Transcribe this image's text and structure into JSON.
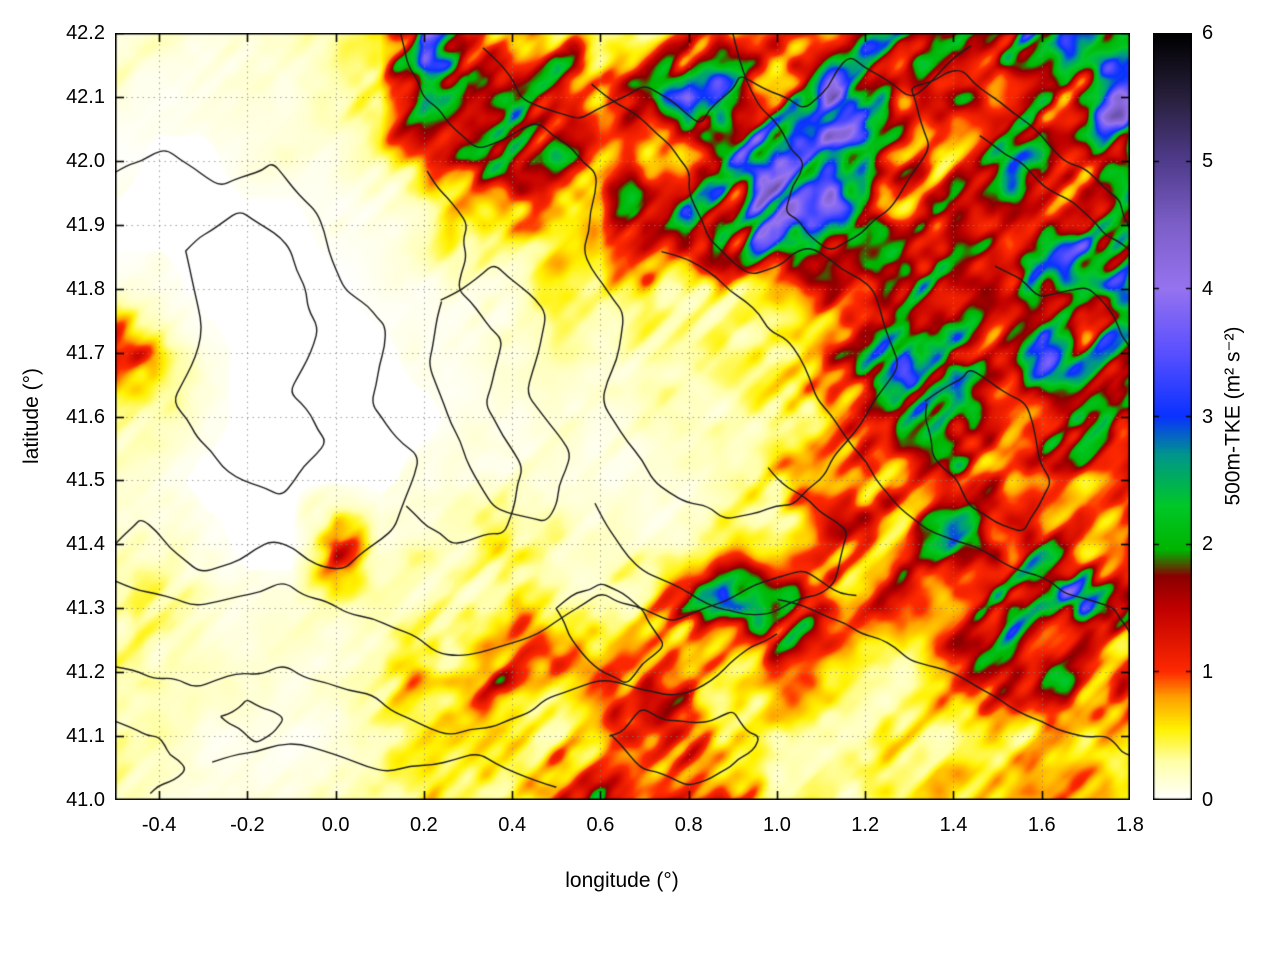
{
  "chart_data": {
    "type": "heatmap",
    "title": "",
    "xlabel": "longitude (°)",
    "ylabel": "latitude (°)",
    "xlim": [
      -0.5,
      1.8
    ],
    "ylim": [
      41.0,
      42.2
    ],
    "grid_on": true,
    "legend": "none",
    "xticks": [
      -0.4,
      -0.2,
      0.0,
      0.2,
      0.4,
      0.6,
      0.8,
      1.0,
      1.2,
      1.4,
      1.6,
      1.8
    ],
    "xtick_labels": [
      "-0.4",
      "-0.2",
      "0.0",
      "0.2",
      "0.4",
      "0.6",
      "0.8",
      "1.0",
      "1.2",
      "1.4",
      "1.6",
      "1.8"
    ],
    "yticks": [
      41.0,
      41.1,
      41.2,
      41.3,
      41.4,
      41.5,
      41.6,
      41.7,
      41.8,
      41.9,
      42.0,
      42.1,
      42.2
    ],
    "ytick_labels": [
      "41.0",
      "41.1",
      "41.2",
      "41.3",
      "41.4",
      "41.5",
      "41.6",
      "41.7",
      "41.8",
      "41.9",
      "42.0",
      "42.1",
      "42.2"
    ],
    "colorbar": {
      "label": "500m-TKE (m² s⁻²)",
      "min": 0,
      "max": 6,
      "ticks": [
        0,
        1,
        2,
        3,
        4,
        5,
        6
      ],
      "tick_labels": [
        "0",
        "1",
        "2",
        "3",
        "4",
        "5",
        "6"
      ],
      "palette": [
        {
          "v": 0.0,
          "c": "#ffffff"
        },
        {
          "v": 0.3,
          "c": "#ffffa8"
        },
        {
          "v": 0.55,
          "c": "#fff200"
        },
        {
          "v": 0.8,
          "c": "#ffa000"
        },
        {
          "v": 1.0,
          "c": "#ff2a00"
        },
        {
          "v": 1.5,
          "c": "#c00000"
        },
        {
          "v": 1.75,
          "c": "#8a0000"
        },
        {
          "v": 1.95,
          "c": "#00b400"
        },
        {
          "v": 2.3,
          "c": "#00c828"
        },
        {
          "v": 2.7,
          "c": "#00968c"
        },
        {
          "v": 3.0,
          "c": "#0a32ff"
        },
        {
          "v": 3.5,
          "c": "#5a50ff"
        },
        {
          "v": 4.0,
          "c": "#9673f0"
        },
        {
          "v": 4.5,
          "c": "#7d5fc8"
        },
        {
          "v": 5.0,
          "c": "#503c8c"
        },
        {
          "v": 5.5,
          "c": "#28203c"
        },
        {
          "v": 6.0,
          "c": "#000000"
        }
      ]
    },
    "grid": {
      "lons": [
        -0.5,
        -0.4,
        -0.3,
        -0.2,
        -0.1,
        0.0,
        0.1,
        0.2,
        0.3,
        0.4,
        0.5,
        0.6,
        0.7,
        0.8,
        0.9,
        1.0,
        1.1,
        1.2,
        1.3,
        1.4,
        1.5,
        1.6,
        1.7,
        1.8
      ],
      "lats_north_to_south": [
        42.2,
        42.1,
        42.0,
        41.9,
        41.8,
        41.7,
        41.6,
        41.5,
        41.4,
        41.3,
        41.2,
        41.1,
        41.0
      ],
      "values_rows_north_to_south": [
        [
          0.3,
          0.2,
          0.1,
          0.1,
          0.2,
          0.3,
          0.6,
          2.8,
          1.2,
          0.5,
          1.4,
          0.6,
          0.5,
          1.5,
          0.8,
          1.8,
          1.2,
          1.5,
          2.2,
          1.2,
          2.6,
          3.2,
          2.4,
          1.8
        ],
        [
          0.1,
          0.1,
          0.1,
          0.1,
          0.1,
          0.2,
          0.4,
          1.8,
          0.8,
          1.6,
          1.2,
          0.6,
          1.8,
          2.6,
          2.2,
          1.6,
          2.4,
          3.2,
          2.0,
          1.4,
          2.2,
          2.8,
          2.0,
          2.6
        ],
        [
          0.1,
          0.0,
          0.0,
          0.1,
          0.1,
          0.1,
          0.3,
          0.8,
          1.6,
          2.0,
          1.4,
          0.8,
          1.0,
          1.4,
          2.2,
          3.4,
          3.0,
          2.6,
          1.6,
          1.2,
          1.8,
          2.4,
          1.6,
          2.2
        ],
        [
          0.0,
          0.0,
          0.0,
          0.0,
          0.0,
          0.1,
          0.1,
          0.2,
          0.5,
          1.0,
          0.6,
          0.4,
          2.4,
          2.8,
          1.8,
          2.6,
          3.0,
          2.2,
          1.2,
          1.6,
          1.0,
          2.0,
          2.6,
          2.0
        ],
        [
          0.1,
          0.1,
          0.0,
          0.0,
          0.0,
          0.0,
          0.1,
          0.1,
          0.2,
          0.3,
          0.3,
          0.4,
          0.8,
          0.6,
          0.5,
          0.8,
          1.0,
          1.4,
          1.6,
          1.2,
          1.8,
          2.6,
          2.2,
          2.8
        ],
        [
          1.0,
          0.4,
          0.1,
          0.0,
          0.0,
          0.0,
          0.0,
          0.1,
          0.1,
          0.1,
          0.2,
          0.2,
          0.3,
          0.3,
          0.4,
          0.6,
          0.8,
          1.4,
          1.8,
          1.4,
          1.6,
          2.4,
          1.8,
          2.2
        ],
        [
          0.5,
          0.2,
          0.1,
          0.0,
          0.0,
          0.0,
          0.0,
          0.0,
          0.1,
          0.1,
          0.1,
          0.1,
          0.2,
          0.2,
          0.3,
          0.5,
          0.8,
          1.2,
          2.0,
          2.4,
          1.6,
          1.4,
          2.0,
          1.8
        ],
        [
          0.2,
          0.1,
          0.0,
          0.0,
          0.0,
          0.0,
          0.0,
          0.1,
          0.1,
          0.2,
          0.1,
          0.1,
          0.1,
          0.2,
          0.3,
          0.4,
          1.0,
          1.6,
          1.2,
          1.4,
          1.6,
          1.0,
          0.8,
          1.2
        ],
        [
          0.3,
          0.2,
          0.1,
          0.0,
          0.0,
          1.0,
          0.2,
          0.3,
          0.4,
          0.5,
          0.3,
          0.2,
          0.2,
          0.3,
          0.4,
          0.5,
          0.6,
          0.8,
          1.4,
          2.2,
          2.6,
          1.8,
          1.0,
          1.4
        ],
        [
          0.6,
          0.3,
          0.2,
          0.1,
          0.1,
          0.2,
          0.2,
          0.3,
          0.6,
          0.8,
          0.6,
          0.5,
          0.8,
          1.4,
          1.8,
          1.6,
          1.8,
          1.4,
          1.0,
          1.4,
          1.8,
          2.0,
          2.4,
          1.8
        ],
        [
          0.5,
          0.3,
          0.2,
          0.1,
          0.1,
          0.2,
          0.3,
          0.8,
          1.6,
          1.4,
          1.2,
          0.8,
          0.8,
          1.0,
          0.8,
          0.8,
          0.6,
          0.5,
          0.4,
          1.0,
          1.6,
          1.4,
          1.6,
          1.8
        ],
        [
          0.3,
          0.2,
          0.1,
          0.1,
          0.1,
          0.1,
          0.2,
          0.3,
          0.4,
          0.5,
          0.4,
          0.6,
          1.2,
          1.6,
          1.2,
          0.5,
          0.4,
          0.3,
          0.5,
          0.4,
          0.5,
          0.6,
          0.5,
          0.6
        ],
        [
          0.2,
          0.1,
          0.1,
          0.1,
          0.1,
          0.2,
          0.3,
          0.4,
          0.5,
          0.6,
          1.2,
          2.0,
          1.4,
          1.8,
          1.0,
          0.6,
          0.5,
          0.5,
          0.5,
          0.6,
          0.6,
          0.7,
          0.6,
          0.5
        ]
      ]
    },
    "contours": {
      "color": "#1c1c1c",
      "paths": [
        [
          [
            -0.5,
            41.98
          ],
          [
            -0.38,
            42.02
          ],
          [
            -0.26,
            41.96
          ],
          [
            -0.14,
            42.0
          ],
          [
            -0.04,
            41.92
          ],
          [
            0.02,
            41.8
          ],
          [
            0.12,
            41.74
          ],
          [
            0.08,
            41.62
          ],
          [
            0.18,
            41.54
          ],
          [
            0.14,
            41.42
          ],
          [
            0.02,
            41.36
          ],
          [
            -0.14,
            41.4
          ],
          [
            -0.3,
            41.36
          ],
          [
            -0.44,
            41.44
          ],
          [
            -0.5,
            41.4
          ]
        ],
        [
          [
            -0.34,
            41.86
          ],
          [
            -0.22,
            41.92
          ],
          [
            -0.1,
            41.86
          ],
          [
            -0.04,
            41.74
          ],
          [
            -0.1,
            41.64
          ],
          [
            -0.02,
            41.56
          ],
          [
            -0.12,
            41.48
          ],
          [
            -0.26,
            41.52
          ],
          [
            -0.36,
            41.62
          ],
          [
            -0.3,
            41.74
          ],
          [
            -0.34,
            41.86
          ]
        ],
        [
          [
            0.24,
            41.78
          ],
          [
            0.36,
            41.84
          ],
          [
            0.48,
            41.76
          ],
          [
            0.44,
            41.64
          ],
          [
            0.54,
            41.54
          ],
          [
            0.48,
            41.44
          ],
          [
            0.36,
            41.46
          ],
          [
            0.28,
            41.56
          ],
          [
            0.22,
            41.68
          ],
          [
            0.24,
            41.78
          ]
        ],
        [
          [
            0.14,
            42.2
          ],
          [
            0.2,
            42.1
          ],
          [
            0.32,
            42.02
          ],
          [
            0.46,
            42.06
          ],
          [
            0.6,
            41.98
          ],
          [
            0.56,
            41.86
          ],
          [
            0.66,
            41.76
          ],
          [
            0.6,
            41.62
          ],
          [
            0.72,
            41.5
          ],
          [
            0.88,
            41.44
          ],
          [
            1.04,
            41.46
          ],
          [
            1.16,
            41.56
          ],
          [
            1.28,
            41.68
          ],
          [
            1.22,
            41.8
          ],
          [
            1.08,
            41.86
          ],
          [
            0.94,
            41.82
          ],
          [
            0.84,
            41.88
          ],
          [
            0.8,
            41.98
          ],
          [
            0.7,
            42.06
          ],
          [
            0.58,
            42.12
          ]
        ],
        [
          [
            0.34,
            42.18
          ],
          [
            0.42,
            42.1
          ],
          [
            0.56,
            42.06
          ],
          [
            0.7,
            42.12
          ],
          [
            0.82,
            42.06
          ],
          [
            0.92,
            42.14
          ],
          [
            1.06,
            42.08
          ],
          [
            1.16,
            42.16
          ],
          [
            1.3,
            42.1
          ],
          [
            1.44,
            42.18
          ]
        ],
        [
          [
            0.9,
            42.2
          ],
          [
            0.96,
            42.08
          ],
          [
            1.06,
            42.0
          ],
          [
            1.02,
            41.92
          ],
          [
            1.12,
            41.86
          ],
          [
            1.26,
            41.92
          ],
          [
            1.34,
            42.02
          ],
          [
            1.3,
            42.12
          ],
          [
            1.42,
            42.14
          ],
          [
            1.54,
            42.08
          ],
          [
            1.66,
            42.0
          ],
          [
            1.78,
            41.94
          ],
          [
            1.8,
            41.88
          ]
        ],
        [
          [
            0.74,
            41.86
          ],
          [
            0.9,
            41.8
          ],
          [
            1.02,
            41.72
          ],
          [
            1.12,
            41.6
          ],
          [
            1.22,
            41.5
          ],
          [
            1.34,
            41.42
          ],
          [
            1.48,
            41.38
          ],
          [
            1.62,
            41.34
          ],
          [
            1.76,
            41.3
          ],
          [
            1.8,
            41.26
          ]
        ],
        [
          [
            -0.5,
            41.34
          ],
          [
            -0.32,
            41.3
          ],
          [
            -0.12,
            41.34
          ],
          [
            0.08,
            41.28
          ],
          [
            0.28,
            41.22
          ],
          [
            0.46,
            41.26
          ],
          [
            0.6,
            41.32
          ],
          [
            0.76,
            41.28
          ],
          [
            0.92,
            41.32
          ],
          [
            1.06,
            41.36
          ],
          [
            1.18,
            41.32
          ]
        ],
        [
          [
            -0.5,
            41.21
          ],
          [
            -0.32,
            41.18
          ],
          [
            -0.12,
            41.21
          ],
          [
            0.08,
            41.16
          ],
          [
            0.26,
            41.1
          ],
          [
            0.44,
            41.14
          ],
          [
            0.6,
            41.19
          ],
          [
            0.76,
            41.16
          ],
          [
            0.9,
            41.21
          ],
          [
            1.0,
            41.26
          ]
        ],
        [
          [
            -0.28,
            41.06
          ],
          [
            -0.08,
            41.09
          ],
          [
            0.12,
            41.04
          ],
          [
            0.32,
            41.07
          ],
          [
            0.5,
            41.02
          ]
        ],
        [
          [
            1.0,
            41.31
          ],
          [
            1.16,
            41.28
          ],
          [
            1.3,
            41.22
          ],
          [
            1.46,
            41.18
          ],
          [
            1.6,
            41.12
          ],
          [
            1.74,
            41.1
          ],
          [
            1.8,
            41.07
          ]
        ],
        [
          [
            1.34,
            41.62
          ],
          [
            1.44,
            41.68
          ],
          [
            1.56,
            41.62
          ],
          [
            1.62,
            41.5
          ],
          [
            1.56,
            41.42
          ],
          [
            1.44,
            41.46
          ],
          [
            1.36,
            41.54
          ],
          [
            1.34,
            41.62
          ]
        ],
        [
          [
            -0.26,
            41.13
          ],
          [
            -0.2,
            41.16
          ],
          [
            -0.12,
            41.13
          ],
          [
            -0.18,
            41.09
          ],
          [
            -0.26,
            41.13
          ]
        ],
        [
          [
            0.58,
            41.46
          ],
          [
            0.7,
            41.36
          ],
          [
            0.86,
            41.3
          ],
          [
            1.0,
            41.29
          ],
          [
            1.12,
            41.34
          ],
          [
            1.16,
            41.42
          ],
          [
            1.08,
            41.47
          ],
          [
            0.98,
            41.52
          ]
        ],
        [
          [
            1.46,
            42.04
          ],
          [
            1.58,
            41.98
          ],
          [
            1.7,
            41.92
          ],
          [
            1.8,
            41.86
          ]
        ],
        [
          [
            0.2,
            41.98
          ],
          [
            0.3,
            41.9
          ],
          [
            0.28,
            41.8
          ],
          [
            0.38,
            41.72
          ],
          [
            0.34,
            41.62
          ],
          [
            0.42,
            41.52
          ],
          [
            0.38,
            41.42
          ],
          [
            0.26,
            41.4
          ],
          [
            0.16,
            41.46
          ]
        ],
        [
          [
            0.5,
            41.3
          ],
          [
            0.56,
            41.22
          ],
          [
            0.66,
            41.18
          ],
          [
            0.74,
            41.24
          ],
          [
            0.7,
            41.3
          ],
          [
            0.6,
            41.34
          ],
          [
            0.5,
            41.3
          ]
        ],
        [
          [
            1.5,
            41.84
          ],
          [
            1.6,
            41.78
          ],
          [
            1.7,
            41.8
          ],
          [
            1.78,
            41.74
          ],
          [
            1.8,
            41.7
          ]
        ],
        [
          [
            -0.5,
            41.12
          ],
          [
            -0.4,
            41.1
          ],
          [
            -0.34,
            41.05
          ],
          [
            -0.42,
            41.01
          ]
        ],
        [
          [
            0.62,
            41.1
          ],
          [
            0.7,
            41.05
          ],
          [
            0.8,
            41.02
          ],
          [
            0.9,
            41.05
          ],
          [
            0.96,
            41.1
          ],
          [
            0.9,
            41.14
          ],
          [
            0.8,
            41.12
          ],
          [
            0.7,
            41.14
          ],
          [
            0.62,
            41.1
          ]
        ]
      ]
    },
    "style": {
      "grid_color": "#969696",
      "border_color": "#000000",
      "background": "#ffffff"
    }
  }
}
